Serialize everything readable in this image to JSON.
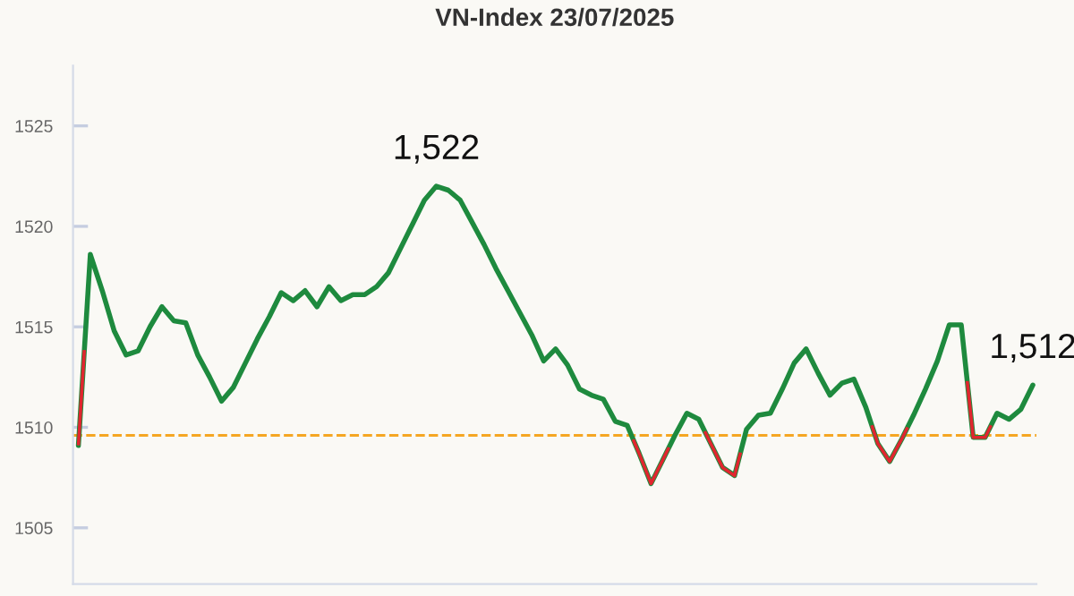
{
  "chart_data": {
    "type": "line",
    "title": "VN-Index 23/07/2025",
    "categories": [
      null,
      null,
      null,
      null,
      null,
      null,
      null,
      null,
      null,
      null,
      null,
      null,
      null,
      null,
      null,
      null,
      null,
      null,
      null,
      null,
      null,
      null,
      null,
      null,
      null,
      null,
      null,
      null,
      null,
      null,
      null,
      null,
      null,
      null,
      null,
      null,
      null,
      null,
      null,
      null,
      null,
      null,
      null,
      null,
      null,
      null,
      null,
      null,
      null,
      null,
      null,
      null,
      null,
      null,
      null,
      null,
      null,
      null,
      null,
      null,
      null,
      null,
      null,
      null,
      null,
      null,
      null,
      null,
      null,
      null,
      null,
      null,
      null,
      null,
      null,
      null,
      null,
      null,
      null,
      null,
      null
    ],
    "series": [
      {
        "color": "#1e8a3e",
        "values": [
          1509.1,
          1518.6,
          1516.8,
          1514.8,
          1513.6,
          1513.8,
          1515.0,
          1516.0,
          1515.3,
          1515.2,
          1513.6,
          1512.5,
          1511.3,
          1512.0,
          1513.2,
          1514.4,
          1515.5,
          1516.7,
          1516.3,
          1516.8,
          1516.0,
          1517.0,
          1516.3,
          1516.6,
          1516.6,
          1517.0,
          1517.7,
          1518.9,
          1520.1,
          1521.3,
          1522.0,
          1521.8,
          1521.3,
          1520.2,
          1519.1,
          1517.9,
          1516.8,
          1515.7,
          1514.6,
          1513.3,
          1513.9,
          1513.1,
          1511.9,
          1511.6,
          1511.4,
          1510.3,
          1510.1,
          1508.7,
          1507.2,
          1508.4,
          1509.6,
          1510.7,
          1510.4,
          1509.2,
          1508.0,
          1507.6,
          1509.9,
          1510.6,
          1510.7,
          1511.9,
          1513.2,
          1513.9,
          1512.7,
          1511.6,
          1512.2,
          1512.4,
          1511.0,
          1509.2,
          1508.3,
          1509.4,
          1510.6,
          1511.9,
          1513.3,
          1515.1,
          1515.1,
          1509.5,
          1509.5,
          1510.7,
          1510.4,
          1510.9,
          1512.1
        ],
        "colors": [
          "#e0262f",
          "#1e8a3e",
          "#1e8a3e",
          "#1e8a3e",
          "#1e8a3e",
          "#1e8a3e",
          "#1e8a3e",
          "#1e8a3e",
          "#1e8a3e",
          "#1e8a3e",
          "#1e8a3e",
          "#1e8a3e",
          "#1e8a3e",
          "#1e8a3e",
          "#1e8a3e",
          "#1e8a3e",
          "#1e8a3e",
          "#1e8a3e",
          "#1e8a3e",
          "#1e8a3e",
          "#1e8a3e",
          "#1e8a3e",
          "#1e8a3e",
          "#1e8a3e",
          "#1e8a3e",
          "#1e8a3e",
          "#1e8a3e",
          "#1e8a3e",
          "#1e8a3e",
          "#1e8a3e",
          "#1e8a3e",
          "#1e8a3e",
          "#1e8a3e",
          "#1e8a3e",
          "#1e8a3e",
          "#1e8a3e",
          "#1e8a3e",
          "#1e8a3e",
          "#1e8a3e",
          "#1e8a3e",
          "#1e8a3e",
          "#1e8a3e",
          "#1e8a3e",
          "#1e8a3e",
          "#1e8a3e",
          "#1e8a3e",
          "#1e8a3e",
          "#e0262f",
          "#e0262f",
          "#e0262f",
          "#1e8a3e",
          "#1e8a3e",
          "#1e8a3e",
          "#e0262f",
          "#e0262f",
          "#e0262f",
          "#1e8a3e",
          "#1e8a3e",
          "#1e8a3e",
          "#1e8a3e",
          "#1e8a3e",
          "#1e8a3e",
          "#1e8a3e",
          "#1e8a3e",
          "#1e8a3e",
          "#1e8a3e",
          "#1e8a3e",
          "#e0262f",
          "#e0262f",
          "#e0262f",
          "#1e8a3e",
          "#1e8a3e",
          "#1e8a3e",
          "#1e8a3e",
          "#1e8a3e",
          "#e0262f",
          "#e0262f",
          "#1e8a3e",
          "#1e8a3e",
          "#1e8a3e",
          "#1e8a3e"
        ],
        "value_labels": [
          null,
          null,
          null,
          null,
          null,
          null,
          null,
          null,
          null,
          null,
          null,
          null,
          null,
          null,
          null,
          null,
          null,
          null,
          null,
          null,
          null,
          null,
          null,
          null,
          null,
          null,
          null,
          null,
          null,
          null,
          "1,522",
          null,
          null,
          null,
          null,
          null,
          null,
          null,
          null,
          null,
          null,
          null,
          null,
          null,
          null,
          null,
          null,
          null,
          null,
          null,
          null,
          null,
          null,
          null,
          null,
          null,
          null,
          null,
          null,
          null,
          null,
          null,
          null,
          null,
          null,
          null,
          null,
          null,
          null,
          null,
          null,
          null,
          null,
          null,
          null,
          null,
          null,
          null,
          null,
          null,
          "1,512"
        ]
      }
    ],
    "ylim": [
      1502.2,
      1528
    ],
    "yticks": [
      1505,
      1510,
      1515,
      1520,
      1525
    ],
    "ref_lines": [
      {
        "axis": "y",
        "value": 1509.6,
        "color": "#f5a623",
        "line_style": "dashed"
      }
    ],
    "grid": false,
    "legend": false,
    "marker": "none",
    "line_style": "solid"
  }
}
